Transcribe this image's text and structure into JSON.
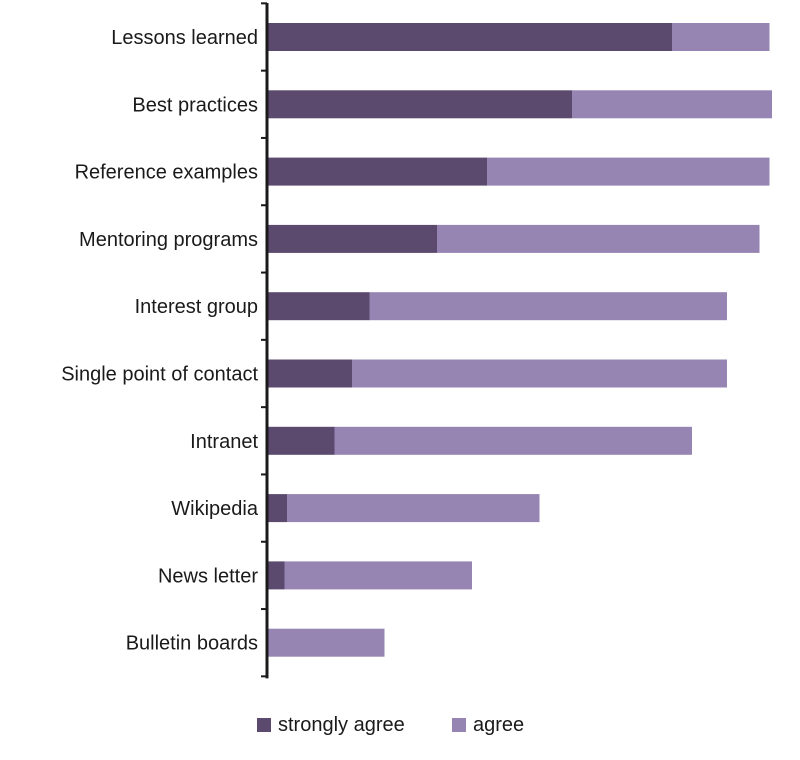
{
  "chart_data": {
    "type": "bar",
    "orientation": "horizontal",
    "stacked": true,
    "categories": [
      "Lessons learned",
      "Best practices",
      "Reference examples",
      "Mentoring programs",
      "Interest group",
      "Single point of contact",
      "Intranet",
      "Wikipedia",
      "News letter",
      "Bulletin boards"
    ],
    "series": [
      {
        "name": "strongly agree",
        "color": "#5b4a6e",
        "values": [
          81,
          61,
          44,
          34,
          20.5,
          17,
          13.5,
          4,
          3.5,
          0
        ]
      },
      {
        "name": "agree",
        "color": "#9684b3",
        "values": [
          19.5,
          40,
          56.5,
          64.5,
          71.5,
          75,
          71.5,
          50.5,
          37.5,
          23.5
        ]
      }
    ],
    "xlim": [
      0,
      101
    ],
    "grid": false,
    "legend_position": "bottom"
  }
}
